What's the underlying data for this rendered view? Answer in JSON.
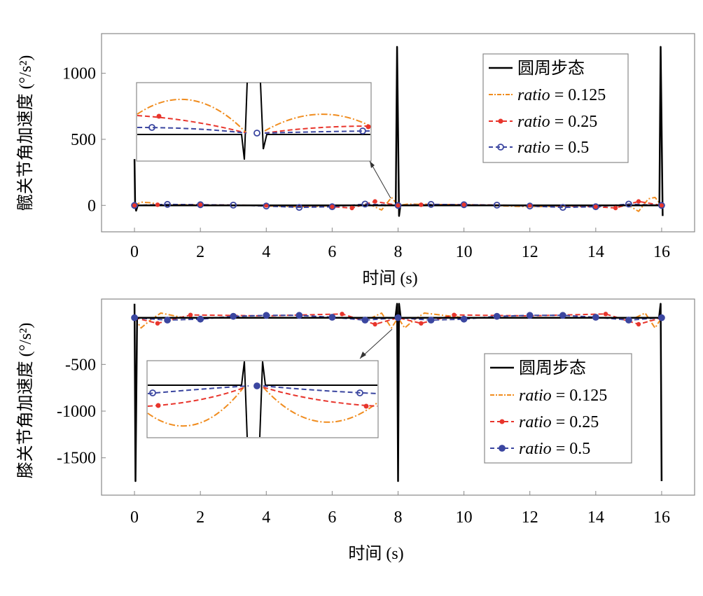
{
  "chart_data": [
    {
      "type": "line",
      "xlabel": "时间 (s)",
      "ylabel": "髋关节角加速度 (°/s²)",
      "xlim": [
        -1,
        17
      ],
      "ylim": [
        -200,
        1300
      ],
      "xticks": [
        "0",
        "2",
        "4",
        "6",
        "8",
        "10",
        "12",
        "14",
        "16"
      ],
      "yticks": [
        "0",
        "500",
        "1000"
      ],
      "ytick_values": [
        0,
        500,
        1000
      ],
      "grid": false,
      "legend_position": "top-right",
      "series": [
        {
          "name": "圆周步态",
          "color": "#000000",
          "style": "solid",
          "x": [
            0,
            0.02,
            0.05,
            0.1,
            8,
            7.93,
            7.97,
            8.03,
            8.07,
            15.93,
            15.97,
            16.03
          ],
          "values": [
            350,
            0,
            -40,
            0,
            0,
            0,
            1200,
            -80,
            0,
            0,
            1200,
            -80
          ]
        },
        {
          "name": "ratio = 0.125",
          "color": "#f08c1e",
          "style": "dashdot",
          "x": [
            0,
            0.2,
            0.5,
            0.8,
            1.5,
            3.5,
            5,
            6.5,
            7.2,
            7.5,
            7.8,
            8,
            8.3,
            10,
            12,
            14,
            15,
            15.3,
            15.6,
            15.8,
            16
          ],
          "values": [
            0,
            25,
            20,
            0,
            5,
            0,
            -10,
            0,
            0,
            -35,
            60,
            0,
            10,
            5,
            -10,
            0,
            0,
            -45,
            50,
            60,
            0
          ]
        },
        {
          "name": "ratio = 0.25",
          "color": "#e8352c",
          "style": "dashed",
          "x": [
            0,
            0.7,
            2,
            4,
            6,
            6.6,
            7.3,
            8,
            8.7,
            10,
            12,
            14,
            14.6,
            15.3,
            16
          ],
          "values": [
            0,
            5,
            5,
            0,
            -10,
            -20,
            30,
            0,
            5,
            5,
            0,
            -10,
            -20,
            30,
            0
          ]
        },
        {
          "name": "ratio = 0.5",
          "color": "#3b46a0",
          "style": "dashed-circle",
          "x": [
            0,
            1,
            2,
            3,
            4,
            5,
            6,
            7,
            8,
            9,
            10,
            11,
            12,
            13,
            14,
            15,
            16
          ],
          "values": [
            0,
            8,
            5,
            2,
            -5,
            -15,
            -10,
            10,
            0,
            8,
            5,
            2,
            -5,
            -15,
            -10,
            10,
            0
          ]
        }
      ]
    },
    {
      "type": "line",
      "xlabel": "时间 (s)",
      "ylabel": "膝关节角加速度 (°/s²)",
      "xlim": [
        -1,
        17
      ],
      "ylim": [
        -1900,
        200
      ],
      "xticks": [
        "0",
        "2",
        "4",
        "6",
        "8",
        "10",
        "12",
        "14",
        "16"
      ],
      "yticks": [
        "-500",
        "-1000",
        "-1500"
      ],
      "ytick_values": [
        -500,
        -1000,
        -1500
      ],
      "grid": false,
      "legend_position": "bottom-right",
      "series": [
        {
          "name": "圆周步态",
          "color": "#000000",
          "style": "solid",
          "x": [
            0,
            0.03,
            0.08,
            7.92,
            7.97,
            8.0,
            8.03,
            8.08,
            15.92,
            15.97,
            16.0
          ],
          "values": [
            150,
            -1750,
            0,
            0,
            150,
            -1750,
            150,
            0,
            0,
            150,
            -1750
          ]
        },
        {
          "name": "ratio = 0.125",
          "color": "#f08c1e",
          "style": "dashdot",
          "x": [
            0,
            0.2,
            0.5,
            0.8,
            1.5,
            4,
            6,
            7.2,
            7.5,
            7.8,
            8,
            8.2,
            8.5,
            8.8,
            10,
            12,
            15.2,
            15.5,
            15.8,
            16
          ],
          "values": [
            0,
            -110,
            -20,
            50,
            0,
            0,
            0,
            0,
            50,
            -110,
            0,
            -110,
            -20,
            50,
            0,
            0,
            0,
            50,
            -110,
            0
          ]
        },
        {
          "name": "ratio = 0.25",
          "color": "#e8352c",
          "style": "dashed",
          "x": [
            0,
            0.7,
            1.7,
            4,
            6.3,
            7.3,
            8,
            8.7,
            9.7,
            12,
            14.3,
            15.3,
            16
          ],
          "values": [
            0,
            -60,
            30,
            20,
            40,
            -70,
            0,
            -60,
            30,
            20,
            40,
            -70,
            0
          ]
        },
        {
          "name": "ratio = 0.5",
          "color": "#3b46a0",
          "style": "dashed-circle",
          "x": [
            0,
            1,
            2,
            3,
            4,
            5,
            6,
            7,
            8,
            9,
            10,
            11,
            12,
            13,
            14,
            15,
            16
          ],
          "values": [
            0,
            -25,
            -15,
            15,
            25,
            25,
            5,
            -25,
            0,
            -25,
            -15,
            15,
            25,
            25,
            5,
            -25,
            0
          ]
        }
      ]
    }
  ]
}
